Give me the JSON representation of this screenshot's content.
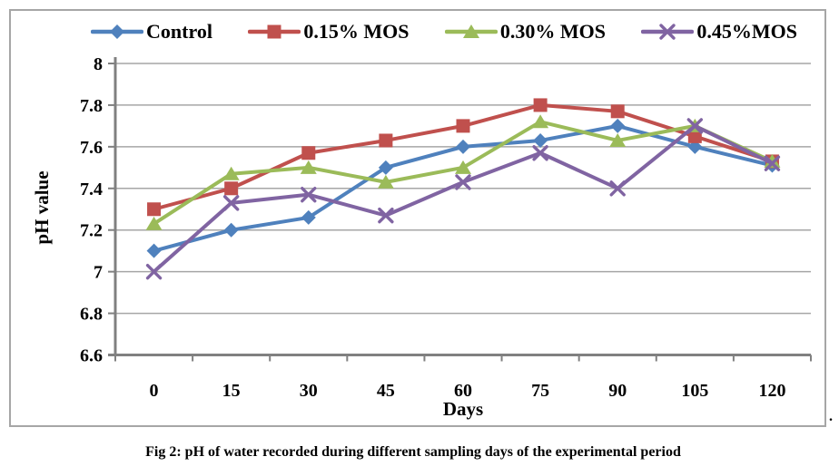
{
  "figure": {
    "caption": "Fig 2: pH of water recorded during different sampling days of the experimental period",
    "stray_period": "."
  },
  "chart_data": {
    "type": "line",
    "title": "",
    "xlabel": "Days",
    "ylabel": "pH value",
    "categories": [
      "0",
      "15",
      "30",
      "45",
      "60",
      "75",
      "90",
      "105",
      "120"
    ],
    "y_ticks": [
      "8",
      "7.8",
      "7.6",
      "7.4",
      "7.2",
      "7",
      "6.8",
      "6.6"
    ],
    "ylim": [
      6.6,
      8.0
    ],
    "y_tick_step": 0.2,
    "grid": true,
    "legend_position": "top",
    "axis_color": "#808080",
    "gridline_color": "#a6a6a6",
    "series": [
      {
        "name": "Control",
        "marker": "diamond",
        "color": "#4F81BD",
        "values": [
          7.1,
          7.2,
          7.26,
          7.5,
          7.6,
          7.63,
          7.7,
          7.6,
          7.51
        ]
      },
      {
        "name": "0.15% MOS",
        "marker": "square",
        "color": "#C0504D",
        "values": [
          7.3,
          7.4,
          7.57,
          7.63,
          7.7,
          7.8,
          7.77,
          7.65,
          7.53
        ]
      },
      {
        "name": "0.30% MOS",
        "marker": "triangle",
        "color": "#9BBB59",
        "values": [
          7.23,
          7.47,
          7.5,
          7.43,
          7.5,
          7.72,
          7.63,
          7.7,
          7.53
        ]
      },
      {
        "name": "0.45%MOS",
        "marker": "x",
        "color": "#8064A2",
        "values": [
          7.0,
          7.33,
          7.37,
          7.27,
          7.43,
          7.57,
          7.4,
          7.7,
          7.52
        ]
      }
    ]
  }
}
